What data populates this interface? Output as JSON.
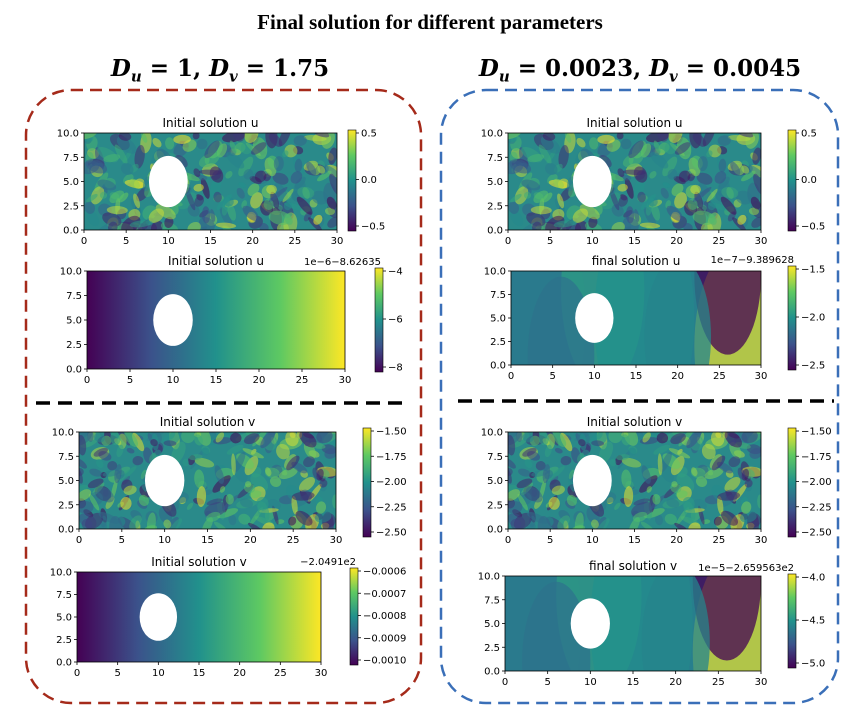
{
  "title": "Final solution for different parameters",
  "columns": [
    {
      "du_label": "D",
      "du_sub": "u",
      "du_val": "= 1,",
      "dv_label": "D",
      "dv_sub": "v",
      "dv_val": "= 1.75",
      "border_color": "#a52a1a"
    },
    {
      "du_label": "D",
      "du_sub": "u",
      "du_val": "= 0.0023,",
      "dv_label": "D",
      "dv_sub": "v",
      "dv_val": "= 0.0045",
      "border_color": "#3a6fb8"
    }
  ],
  "x_ticks": [
    "0",
    "5",
    "10",
    "15",
    "20",
    "25",
    "30"
  ],
  "y_ticks": [
    "0.0",
    "2.5",
    "5.0",
    "7.5",
    "10.0"
  ],
  "panels": [
    {
      "title": "Initial solution u",
      "field": "noise",
      "seed": 1,
      "offset": "",
      "cb_ticks": [
        "0.5",
        "0.0",
        "−0.5"
      ]
    },
    {
      "title": "Initial solution u",
      "field": "gradient",
      "seed": 0,
      "offset": "1e−6−8.62635",
      "cb_ticks": [
        "−4",
        "−6",
        "−8"
      ]
    },
    {
      "title": "Initial solution v",
      "field": "noise",
      "seed": 2,
      "offset": "",
      "cb_ticks": [
        "−1.50",
        "−1.75",
        "−2.00",
        "−2.25",
        "−2.50"
      ]
    },
    {
      "title": "Initial solution v",
      "field": "gradient",
      "seed": 0,
      "offset": "−2.0491e2",
      "cb_ticks": [
        "−0.0006",
        "−0.0007",
        "−0.0008",
        "−0.0009",
        "−0.0010"
      ]
    },
    {
      "title": "Initial solution u",
      "field": "noise",
      "seed": 1,
      "offset": "",
      "cb_ticks": [
        "0.5",
        "0.0",
        "−0.5"
      ]
    },
    {
      "title": "final solution u",
      "field": "smooth",
      "seed": 0,
      "offset": "1e−7−9.389628",
      "cb_ticks": [
        "−1.5",
        "−2.0",
        "−2.5"
      ]
    },
    {
      "title": "Initial solution v",
      "field": "noise",
      "seed": 2,
      "offset": "",
      "cb_ticks": [
        "−1.50",
        "−1.75",
        "−2.00",
        "−2.25",
        "−2.50"
      ]
    },
    {
      "title": "final solution v",
      "field": "smooth",
      "seed": 0,
      "offset": "1e−5−2.659563e2",
      "cb_ticks": [
        "−4.0",
        "−4.5",
        "−5.0"
      ]
    }
  ]
}
